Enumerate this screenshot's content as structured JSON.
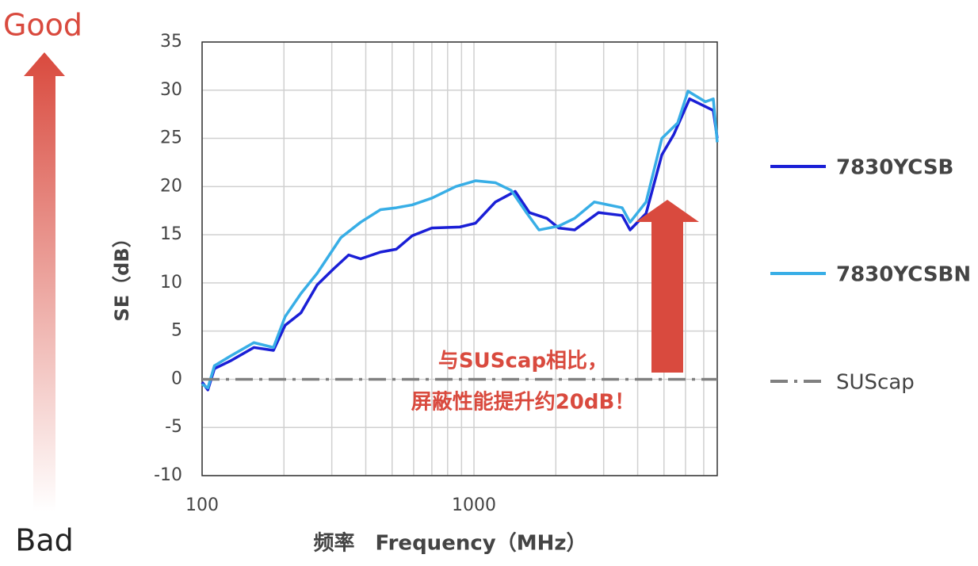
{
  "chart_data": {
    "type": "line",
    "y_label": "SE（dB）",
    "x_label": "频率　Frequency（MHz）",
    "good_label": "Good",
    "bad_label": "Bad",
    "annotation": [
      "与SUScap相比，",
      "屏蔽性能提升约20dB！"
    ],
    "xscale": "log",
    "xlim": [
      100,
      7850
    ],
    "xticks": [
      100,
      1000
    ],
    "xgrid": [
      200,
      300,
      400,
      500,
      600,
      700,
      800,
      900,
      2000,
      3000,
      4000,
      5000,
      6000,
      7000
    ],
    "ylim": [
      -10,
      35
    ],
    "yticks": [
      -10,
      -5,
      0,
      5,
      10,
      15,
      20,
      25,
      30,
      35
    ],
    "grid": true,
    "legend": "right",
    "series": [
      {
        "name": "7830YCSB",
        "color": "#1a1fd6",
        "linestyle": "solid",
        "x": [
          100,
          105,
          111,
          127,
          155,
          183,
          202,
          231,
          265,
          303,
          346,
          383,
          453,
          518,
          593,
          700,
          887,
          1013,
          1199,
          1418,
          1599,
          1854,
          2050,
          2345,
          2871,
          3508,
          3752,
          4295,
          4911,
          5432,
          6209,
          7100,
          7590,
          7850
        ],
        "values": [
          -0.3,
          -1.1,
          1.1,
          1.9,
          3.3,
          3.0,
          5.6,
          6.9,
          9.8,
          11.4,
          12.9,
          12.5,
          13.2,
          13.5,
          14.9,
          15.7,
          15.8,
          16.2,
          18.4,
          19.5,
          17.3,
          16.7,
          15.7,
          15.5,
          17.3,
          17.0,
          15.5,
          17.2,
          23.3,
          25.4,
          29.1,
          28.3,
          27.9,
          25.0
        ]
      },
      {
        "name": "7830YCSBN",
        "color": "#38aee6",
        "linestyle": "solid",
        "x": [
          100,
          105,
          111,
          127,
          155,
          183,
          202,
          231,
          265,
          324,
          383,
          453,
          518,
          593,
          700,
          857,
          1013,
          1199,
          1371,
          1568,
          1734,
          2050,
          2345,
          2772,
          3508,
          3752,
          4295,
          4911,
          5613,
          6125,
          7100,
          7590,
          7850
        ],
        "values": [
          -0.5,
          -0.9,
          1.4,
          2.4,
          3.8,
          3.3,
          6.5,
          8.9,
          11.0,
          14.7,
          16.3,
          17.6,
          17.8,
          18.1,
          18.8,
          20.0,
          20.6,
          20.4,
          19.6,
          17.2,
          15.5,
          15.9,
          16.7,
          18.4,
          17.8,
          16.3,
          18.4,
          25.0,
          26.6,
          29.9,
          28.8,
          29.1,
          24.6
        ]
      },
      {
        "name": "SUScap",
        "color": "#808080",
        "linestyle": "dashdot",
        "x": [
          100,
          7850
        ],
        "values": [
          0,
          0
        ]
      }
    ]
  }
}
